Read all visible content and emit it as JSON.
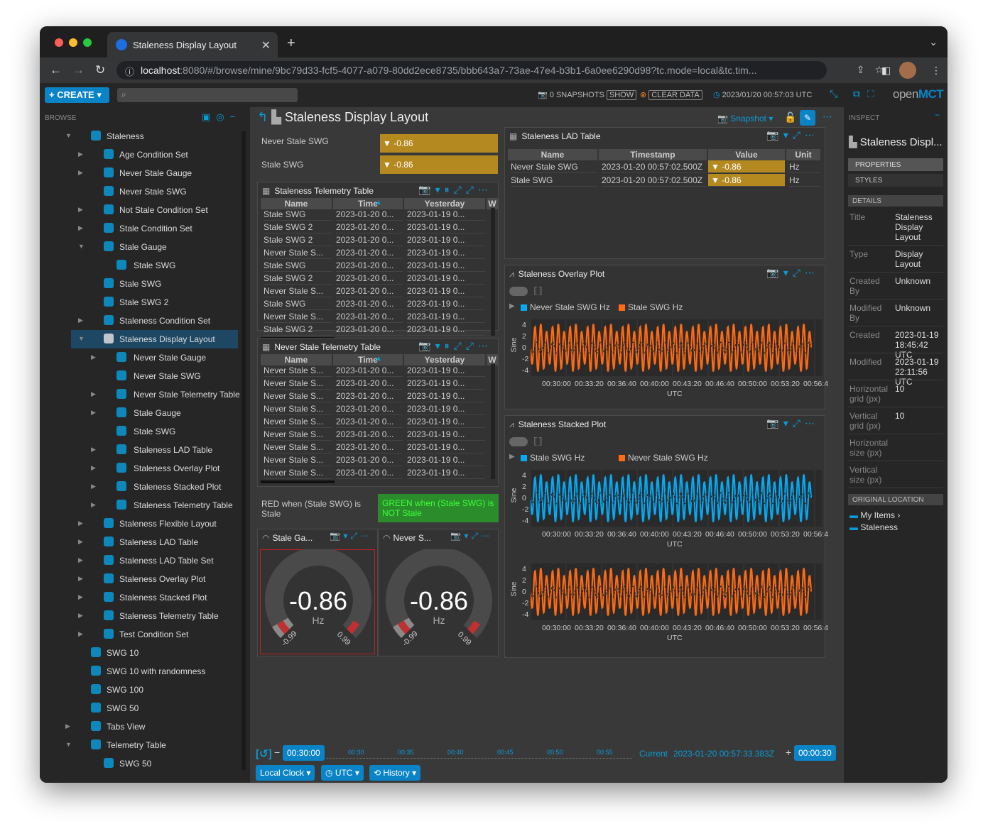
{
  "browser": {
    "tab_title": "Staleness Display Layout",
    "url_host": "localhost",
    "url_rest": ":8080/#/browse/mine/9bc79d33-fcf5-4077-a079-80dd2ece8735/bbb643a7-73ae-47e4-b3b1-6a0ee6290d98?tc.mode=local&tc.tim..."
  },
  "header": {
    "create": "CREATE",
    "snapshots": "0 SNAPSHOTS",
    "show": "SHOW",
    "clear_data": "CLEAR DATA",
    "utc_time": "2023/01/20 00:57:03 UTC",
    "logo_a": "open",
    "logo_b": "MCT"
  },
  "browse": {
    "label": "BROWSE",
    "items": [
      {
        "label": "Staleness",
        "icon": "folder-icon",
        "arrow": "▼"
      },
      {
        "label": "Age Condition Set",
        "icon": "condition-set-icon",
        "arrow": "▶"
      },
      {
        "label": "Never Stale Gauge",
        "icon": "gauge-icon",
        "arrow": "▶"
      },
      {
        "label": "Never Stale SWG",
        "icon": "swg-icon",
        "arrow": ""
      },
      {
        "label": "Not Stale Condition Set",
        "icon": "condition-set-icon",
        "arrow": "▶"
      },
      {
        "label": "Stale Condition Set",
        "icon": "condition-set-icon",
        "arrow": "▶"
      },
      {
        "label": "Stale Gauge",
        "icon": "gauge-icon",
        "arrow": "▼"
      },
      {
        "label": "Stale SWG",
        "icon": "swg-icon",
        "arrow": ""
      },
      {
        "label": "Stale SWG",
        "icon": "swg-icon",
        "arrow": ""
      },
      {
        "label": "Stale SWG 2",
        "icon": "swg-icon",
        "arrow": ""
      },
      {
        "label": "Staleness Condition Set",
        "icon": "condition-set-icon",
        "arrow": "▶"
      },
      {
        "label": "Staleness Display Layout",
        "icon": "layout-icon",
        "arrow": "▼"
      },
      {
        "label": "Never Stale Gauge",
        "icon": "gauge-icon",
        "arrow": "▶"
      },
      {
        "label": "Never Stale SWG",
        "icon": "swg-icon",
        "arrow": ""
      },
      {
        "label": "Never Stale Telemetry Table",
        "icon": "table-icon",
        "arrow": "▶"
      },
      {
        "label": "Stale Gauge",
        "icon": "gauge-icon",
        "arrow": "▶"
      },
      {
        "label": "Stale SWG",
        "icon": "swg-icon",
        "arrow": ""
      },
      {
        "label": "Staleness LAD Table",
        "icon": "lad-table-icon",
        "arrow": "▶"
      },
      {
        "label": "Staleness Overlay Plot",
        "icon": "overlay-plot-icon",
        "arrow": "▶"
      },
      {
        "label": "Staleness Stacked Plot",
        "icon": "stacked-plot-icon",
        "arrow": "▶"
      },
      {
        "label": "Staleness Telemetry Table",
        "icon": "table-icon",
        "arrow": "▶"
      },
      {
        "label": "Staleness Flexible Layout",
        "icon": "flexible-layout-icon",
        "arrow": "▶"
      },
      {
        "label": "Staleness LAD Table",
        "icon": "lad-table-icon",
        "arrow": "▶"
      },
      {
        "label": "Staleness LAD Table Set",
        "icon": "lad-table-set-icon",
        "arrow": "▶"
      },
      {
        "label": "Staleness Overlay Plot",
        "icon": "overlay-plot-icon",
        "arrow": "▶"
      },
      {
        "label": "Staleness Stacked Plot",
        "icon": "stacked-plot-icon",
        "arrow": "▶"
      },
      {
        "label": "Staleness Telemetry Table",
        "icon": "table-icon",
        "arrow": "▶"
      },
      {
        "label": "Test Condition Set",
        "icon": "condition-set-icon",
        "arrow": "▶"
      },
      {
        "label": "SWG 10",
        "icon": "swg-icon",
        "arrow": ""
      },
      {
        "label": "SWG 10 with randomness",
        "icon": "swg-icon",
        "arrow": ""
      },
      {
        "label": "SWG 100",
        "icon": "swg-icon",
        "arrow": ""
      },
      {
        "label": "SWG 50",
        "icon": "swg-icon",
        "arrow": ""
      },
      {
        "label": "Tabs View",
        "icon": "tabs-icon",
        "arrow": "▶"
      },
      {
        "label": "Telemetry Table",
        "icon": "table-icon",
        "arrow": "▼"
      },
      {
        "label": "SWG 50",
        "icon": "swg-icon",
        "arrow": ""
      }
    ]
  },
  "main": {
    "title": "Staleness Display Layout",
    "snapshot": "Snapshot",
    "alpha": {
      "never_label": "Never Stale SWG",
      "never_value": "-0.86",
      "stale_label": "Stale SWG",
      "stale_value": "-0.86"
    },
    "table1": {
      "title": "Staleness Telemetry Table",
      "cols": [
        "Name",
        "Time",
        "Yesterday",
        "W"
      ],
      "rows": [
        [
          "Stale SWG",
          "2023-01-20 0...",
          "2023-01-19 0..."
        ],
        [
          "Stale SWG 2",
          "2023-01-20 0...",
          "2023-01-19 0..."
        ],
        [
          "Stale SWG 2",
          "2023-01-20 0...",
          "2023-01-19 0..."
        ],
        [
          "Never Stale S...",
          "2023-01-20 0...",
          "2023-01-19 0..."
        ],
        [
          "Stale SWG",
          "2023-01-20 0...",
          "2023-01-19 0..."
        ],
        [
          "Stale SWG 2",
          "2023-01-20 0...",
          "2023-01-19 0..."
        ],
        [
          "Never Stale S...",
          "2023-01-20 0...",
          "2023-01-19 0..."
        ],
        [
          "Stale SWG",
          "2023-01-20 0...",
          "2023-01-19 0..."
        ],
        [
          "Never Stale S...",
          "2023-01-20 0...",
          "2023-01-19 0..."
        ],
        [
          "Stale SWG 2",
          "2023-01-20 0...",
          "2023-01-19 0..."
        ]
      ]
    },
    "table2": {
      "title": "Never Stale Telemetry Table",
      "cols": [
        "Name",
        "Time",
        "Yesterday",
        "W"
      ],
      "rows": [
        [
          "Never Stale S...",
          "2023-01-20 0...",
          "2023-01-19 0..."
        ],
        [
          "Never Stale S...",
          "2023-01-20 0...",
          "2023-01-19 0..."
        ],
        [
          "Never Stale S...",
          "2023-01-20 0...",
          "2023-01-19 0..."
        ],
        [
          "Never Stale S...",
          "2023-01-20 0...",
          "2023-01-19 0..."
        ],
        [
          "Never Stale S...",
          "2023-01-20 0...",
          "2023-01-19 0..."
        ],
        [
          "Never Stale S...",
          "2023-01-20 0...",
          "2023-01-19 0..."
        ],
        [
          "Never Stale S...",
          "2023-01-20 0...",
          "2023-01-19 0..."
        ],
        [
          "Never Stale S...",
          "2023-01-20 0...",
          "2023-01-19 0..."
        ],
        [
          "Never Stale S...",
          "2023-01-20 0...",
          "2023-01-19 0..."
        ]
      ]
    },
    "cond": {
      "red": "RED when (Stale SWG) is Stale",
      "green": "GREEN when (Stale SWG) is NOT Stale"
    },
    "gauge1": {
      "title": "Stale Ga...",
      "value": "-0.86",
      "unit": "Hz",
      "min": "-0.99",
      "max": "0.99"
    },
    "gauge2": {
      "title": "Never S...",
      "value": "-0.86",
      "unit": "Hz",
      "min": "-0.99",
      "max": "0.99"
    },
    "lad": {
      "title": "Staleness LAD Table",
      "cols": [
        "Name",
        "Timestamp",
        "Value",
        "Unit"
      ],
      "rows": [
        [
          "Never Stale SWG",
          "2023-01-20 00:57:02.500Z",
          "-0.86",
          "Hz"
        ],
        [
          "Stale SWG",
          "2023-01-20 00:57:02.500Z",
          "-0.86",
          "Hz"
        ]
      ]
    },
    "overlay": {
      "title": "Staleness Overlay Plot",
      "legend": [
        "Never Stale SWG Hz",
        "Stale SWG Hz"
      ]
    },
    "stacked": {
      "title": "Staleness Stacked Plot",
      "legend": [
        "Stale SWG Hz",
        "Never Stale SWG Hz"
      ]
    },
    "plot_axis": {
      "ylabel": "Sine",
      "yticks": [
        "4",
        "2",
        "0",
        "-2",
        "-4"
      ],
      "xticks": [
        "00:30:00",
        "00:33:20",
        "00:36:40",
        "00:40:00",
        "00:43:20",
        "00:46:40",
        "00:50:00",
        "00:53:20",
        "00:56:4"
      ],
      "xunit": "UTC"
    },
    "colors": {
      "orange": "#ff6a13",
      "blue": "#05a9f4",
      "gold": "#b48a20"
    },
    "time": {
      "start": "00:30:00",
      "ticks": [
        "00:30",
        "00:35",
        "00:40",
        "00:45",
        "00:50",
        "00:55"
      ],
      "current_label": "Current",
      "current": "2023-01-20 00:57:33.383Z",
      "end": "00:00:30",
      "clock": "Local Clock",
      "tz": "UTC",
      "history": "History"
    }
  },
  "inspect": {
    "label": "INSPECT",
    "title": "Staleness Displ...",
    "tabs": [
      "PROPERTIES",
      "STYLES"
    ],
    "details": "DETAILS",
    "props": [
      [
        "Title",
        "Staleness\nDisplay\nLayout"
      ],
      [
        "Type",
        "Display\nLayout"
      ],
      [
        "Created\nBy",
        "Unknown"
      ],
      [
        "Modified\nBy",
        "Unknown"
      ],
      [
        "Created",
        "2023-01-19\n18:45:42 UTC"
      ],
      [
        "Modified",
        "2023-01-19\n22:11:56 UTC"
      ],
      [
        "Horizontal\ngrid (px)",
        "10"
      ],
      [
        "Vertical\ngrid (px)",
        "10"
      ],
      [
        "Horizontal\nsize (px)",
        ""
      ],
      [
        "Vertical\nsize (px)",
        ""
      ]
    ],
    "orig": "ORIGINAL LOCATION",
    "loc": [
      "My Items",
      "Staleness"
    ]
  }
}
